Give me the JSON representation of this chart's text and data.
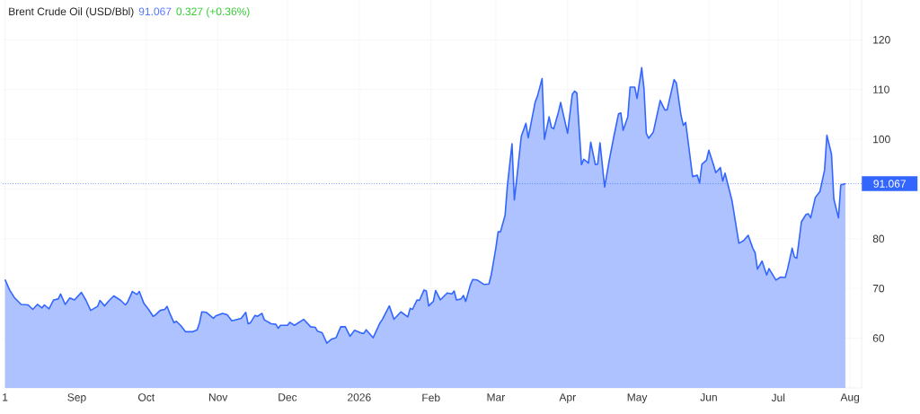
{
  "chart_data": {
    "type": "area",
    "title": "Brent Crude Oil (USD/Bbl)",
    "annotations": [
      "91.067",
      "0.327 (+0.36%)"
    ],
    "color": "#3366ff",
    "x": [
      "2025-08-01",
      "2025-08-03",
      "2025-08-05",
      "2025-08-08",
      "2025-08-11",
      "2025-08-13",
      "2025-08-15",
      "2025-08-17",
      "2025-08-18",
      "2025-08-20",
      "2025-08-22",
      "2025-08-24",
      "2025-08-25",
      "2025-08-27",
      "2025-08-29",
      "2025-08-31",
      "2025-09-03",
      "2025-09-05",
      "2025-09-07",
      "2025-09-10",
      "2025-09-11",
      "2025-09-13",
      "2025-09-15",
      "2025-09-17",
      "2025-09-20",
      "2025-09-22",
      "2025-09-23",
      "2025-09-25",
      "2025-09-27",
      "2025-09-28",
      "2025-09-30",
      "2025-10-02",
      "2025-10-04",
      "2025-10-05",
      "2025-10-07",
      "2025-10-09",
      "2025-10-10",
      "2025-10-11",
      "2025-10-13",
      "2025-10-14",
      "2025-10-16",
      "2025-10-18",
      "2025-10-21",
      "2025-10-23",
      "2025-10-24",
      "2025-10-25",
      "2025-10-27",
      "2025-10-30",
      "2025-10-31",
      "2025-11-03",
      "2025-11-05",
      "2025-11-07",
      "2025-11-11",
      "2025-11-13",
      "2025-11-14",
      "2025-11-15",
      "2025-11-17",
      "2025-11-18",
      "2025-11-20",
      "2025-11-21",
      "2025-11-24",
      "2025-11-26",
      "2025-11-27",
      "2025-11-28",
      "2025-12-01",
      "2025-12-02",
      "2025-12-04",
      "2025-12-08",
      "2025-12-11",
      "2025-12-13",
      "2025-12-14",
      "2025-12-16",
      "2025-12-18",
      "2025-12-20",
      "2025-12-22",
      "2025-12-24",
      "2025-12-26",
      "2025-12-28",
      "2025-12-30",
      "2026-01-02",
      "2026-01-03",
      "2026-01-04",
      "2026-01-07",
      "2026-01-10",
      "2026-01-11",
      "2026-01-14",
      "2026-01-16",
      "2026-01-17",
      "2026-01-19",
      "2026-01-22",
      "2026-01-23",
      "2026-01-24",
      "2026-01-26",
      "2026-01-27",
      "2026-01-29",
      "2026-01-30",
      "2026-01-31",
      "2026-02-02",
      "2026-02-03",
      "2026-02-05",
      "2026-02-08",
      "2026-02-10",
      "2026-02-11",
      "2026-02-12",
      "2026-02-14",
      "2026-02-15",
      "2026-02-16",
      "2026-02-18",
      "2026-02-19",
      "2026-02-21",
      "2026-02-24",
      "2026-02-26",
      "2026-02-27",
      "2026-03-01",
      "2026-03-02",
      "2026-03-03",
      "2026-03-05",
      "2026-03-06",
      "2026-03-08",
      "2026-03-09",
      "2026-03-10",
      "2026-03-12",
      "2026-03-14",
      "2026-03-15",
      "2026-03-16",
      "2026-03-18",
      "2026-03-19",
      "2026-03-21",
      "2026-03-22",
      "2026-03-24",
      "2026-03-25",
      "2026-03-26",
      "2026-03-28",
      "2026-03-29",
      "2026-04-01",
      "2026-04-03",
      "2026-04-04",
      "2026-04-05",
      "2026-04-07",
      "2026-04-08",
      "2026-04-10",
      "2026-04-11",
      "2026-04-13",
      "2026-04-14",
      "2026-04-15",
      "2026-04-17",
      "2026-04-19",
      "2026-04-21",
      "2026-04-23",
      "2026-04-24",
      "2026-04-25",
      "2026-04-27",
      "2026-04-28",
      "2026-04-30",
      "2026-05-01",
      "2026-05-03",
      "2026-05-04",
      "2026-05-05",
      "2026-05-06",
      "2026-05-08",
      "2026-05-11",
      "2026-05-13",
      "2026-05-14",
      "2026-05-17",
      "2026-05-18",
      "2026-05-20",
      "2026-05-21",
      "2026-05-22",
      "2026-05-25",
      "2026-05-27",
      "2026-05-28",
      "2026-05-29",
      "2026-05-31",
      "2026-06-01",
      "2026-06-03",
      "2026-06-04",
      "2026-06-06",
      "2026-06-07",
      "2026-06-08",
      "2026-06-11",
      "2026-06-14",
      "2026-06-16",
      "2026-06-18",
      "2026-06-20",
      "2026-06-21",
      "2026-06-22",
      "2026-06-24",
      "2026-06-26",
      "2026-06-27",
      "2026-06-30",
      "2026-07-02",
      "2026-07-04",
      "2026-07-05",
      "2026-07-07",
      "2026-07-08",
      "2026-07-09",
      "2026-07-11",
      "2026-07-13",
      "2026-07-14",
      "2026-07-15",
      "2026-07-17",
      "2026-07-19",
      "2026-07-21",
      "2026-07-22",
      "2026-07-24",
      "2026-07-25",
      "2026-07-27",
      "2026-07-28",
      "2026-07-30"
    ],
    "values": [
      71.8,
      69.7,
      68.2,
      66.8,
      66.7,
      65.8,
      66.8,
      66.1,
      66.7,
      65.9,
      67.7,
      67.9,
      68.9,
      66.8,
      68.1,
      67.7,
      69.2,
      67.6,
      65.6,
      66.4,
      67.6,
      66.5,
      67.6,
      68.5,
      67.6,
      66.7,
      67.3,
      69.4,
      68.8,
      69.4,
      67.0,
      65.8,
      64.4,
      64.7,
      65.6,
      65.8,
      66.4,
      65.2,
      63.1,
      63.4,
      62.5,
      61.3,
      61.3,
      61.7,
      63.1,
      65.3,
      65.2,
      64.0,
      64.5,
      65.0,
      64.7,
      63.5,
      64.0,
      65.2,
      62.9,
      63.1,
      64.6,
      64.4,
      65.0,
      63.7,
      62.9,
      62.8,
      62.0,
      62.6,
      62.6,
      63.2,
      62.6,
      63.8,
      62.3,
      62.2,
      61.4,
      61.1,
      59.0,
      59.8,
      60.1,
      62.3,
      62.3,
      60.4,
      61.6,
      61.0,
      61.0,
      61.7,
      60.1,
      63.1,
      63.8,
      66.5,
      63.8,
      64.3,
      65.3,
      64.3,
      66.0,
      65.8,
      67.7,
      67.6,
      69.7,
      69.5,
      66.5,
      67.4,
      69.6,
      67.7,
      69.1,
      68.9,
      69.5,
      67.7,
      67.9,
      68.6,
      67.4,
      70.7,
      71.8,
      71.7,
      70.8,
      70.9,
      72.7,
      78.1,
      81.4,
      81.4,
      84.7,
      90.7,
      99.1,
      87.8,
      91.9,
      100.6,
      103.2,
      100.3,
      102.7,
      107.5,
      108.7,
      112.2,
      100.0,
      104.5,
      102.4,
      102.1,
      105.4,
      107.4,
      101.2,
      109.0,
      109.7,
      109.3,
      94.9,
      96.0,
      95.2,
      99.4,
      94.9,
      95.0,
      99.3,
      90.4,
      95.8,
      100.6,
      105.1,
      105.3,
      101.8,
      104.5,
      110.5,
      110.5,
      108.2,
      114.4,
      110.2,
      101.2,
      100.2,
      101.4,
      107.8,
      105.9,
      105.9,
      112.0,
      111.3,
      104.8,
      102.8,
      103.4,
      92.5,
      92.8,
      91.2,
      95.0,
      95.8,
      97.8,
      94.9,
      93.3,
      94.3,
      91.6,
      93.2,
      87.7,
      79.1,
      79.6,
      80.7,
      78.1,
      77.2,
      73.9,
      75.5,
      72.7,
      74.0,
      71.7,
      72.3,
      72.2,
      73.9,
      78.1,
      76.3,
      76.1,
      83.4,
      84.9,
      85.0,
      84.2,
      88.3,
      89.5,
      93.8,
      100.8,
      97.0,
      88.0,
      84.2,
      90.8,
      91.067
    ],
    "xlim": [
      "2025-07-31",
      "2026-08-06"
    ],
    "ylim": [
      50,
      128
    ],
    "xticks": [
      {
        "value": "2025-08-01",
        "label": "1"
      },
      {
        "value": "2025-09-01",
        "label": "Sep"
      },
      {
        "value": "2025-10-01",
        "label": "Oct"
      },
      {
        "value": "2025-11-01",
        "label": "Nov"
      },
      {
        "value": "2025-12-01",
        "label": "Dec"
      },
      {
        "value": "2026-01-01",
        "label": "2026"
      },
      {
        "value": "2026-02-01",
        "label": "Feb"
      },
      {
        "value": "2026-03-01",
        "label": "Mar"
      },
      {
        "value": "2026-04-01",
        "label": "Apr"
      },
      {
        "value": "2026-05-01",
        "label": "May"
      },
      {
        "value": "2026-06-01",
        "label": "Jun"
      },
      {
        "value": "2026-07-01",
        "label": "Jul"
      },
      {
        "value": "2026-08-01",
        "label": "Aug"
      }
    ],
    "yticks": [
      60,
      70,
      80,
      {
        "value": 90,
        "label": null
      },
      100,
      110,
      120
    ],
    "grid": true,
    "ref_lines": [
      {
        "axis": "y",
        "value": 91.067,
        "label": "91.067",
        "color": "#3366ff",
        "line_style": "dotted"
      }
    ]
  }
}
